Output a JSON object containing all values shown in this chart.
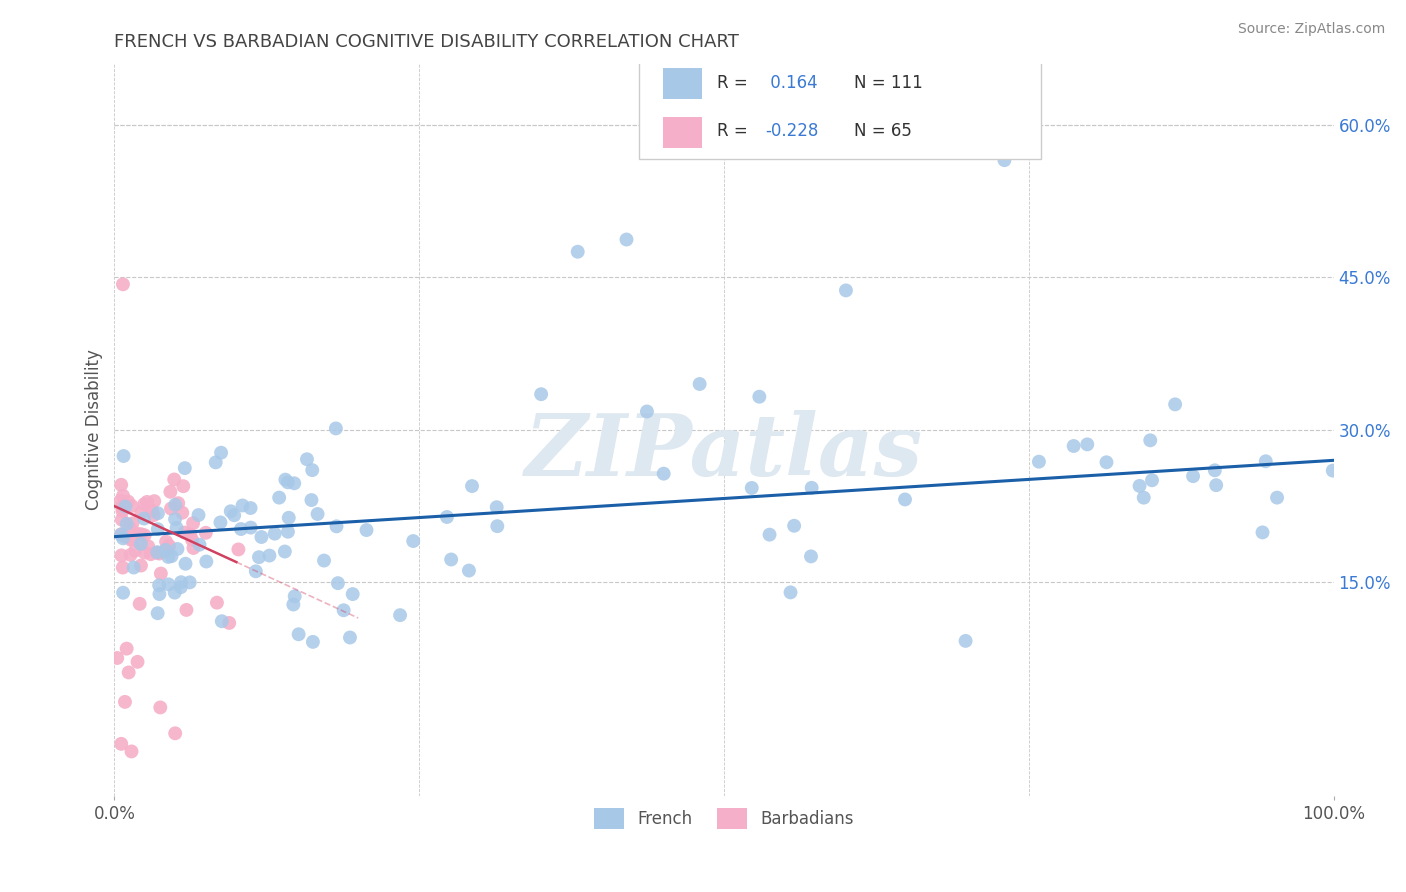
{
  "title": "FRENCH VS BARBADIAN COGNITIVE DISABILITY CORRELATION CHART",
  "source": "Source: ZipAtlas.com",
  "ylabel": "Cognitive Disability",
  "xlim": [
    0.0,
    1.0
  ],
  "ylim": [
    -0.06,
    0.66
  ],
  "yticks_right": [
    0.15,
    0.3,
    0.45,
    0.6
  ],
  "ytick_labels_right": [
    "15.0%",
    "30.0%",
    "45.0%",
    "60.0%"
  ],
  "french_R": 0.164,
  "french_N": 111,
  "barbadian_R": -0.228,
  "barbadian_N": 65,
  "french_color": "#a8c8e8",
  "french_line_color": "#1a5fa8",
  "barbadian_color": "#f5afc8",
  "barbadian_line_color": "#d04060",
  "background_color": "#ffffff",
  "grid_color": "#c8c8c8",
  "title_color": "#444444",
  "watermark_color": "#dde8f0",
  "r_text_color": "#3a7ad4",
  "axis_text_color": "#555555",
  "french_line_intercept": 0.195,
  "french_line_slope": 0.075,
  "barbadian_line_intercept": 0.225,
  "barbadian_line_slope": -0.55,
  "barbadian_line_xend": 0.2
}
